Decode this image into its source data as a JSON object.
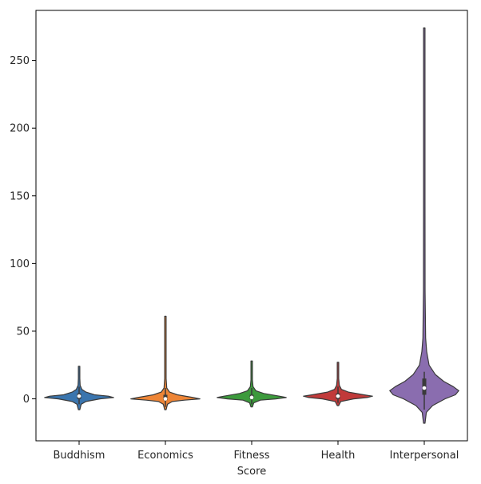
{
  "chart_data": {
    "type": "violin",
    "xlabel": "Score",
    "ylabel": "",
    "ylim": [
      -31,
      287
    ],
    "yticks": [
      0,
      50,
      100,
      150,
      200,
      250
    ],
    "ytick_labels": [
      "0",
      "50",
      "100",
      "150",
      "200",
      "250"
    ],
    "grid": false,
    "categories": [
      "Buddhism",
      "Economics",
      "Fitness",
      "Health",
      "Interpersonal"
    ],
    "series": [
      {
        "category": "Buddhism",
        "color": "#3a75ae",
        "min": -8,
        "max": 24,
        "q1": 0,
        "median": 2,
        "q3": 4,
        "whisker_low": -4,
        "whisker_high": 9,
        "density": [
          [
            -8,
            0.01
          ],
          [
            -4,
            0.06
          ],
          [
            -2,
            0.2
          ],
          [
            0,
            0.6
          ],
          [
            1,
            1.0
          ],
          [
            2,
            0.85
          ],
          [
            3,
            0.45
          ],
          [
            5,
            0.2
          ],
          [
            7,
            0.08
          ],
          [
            10,
            0.03
          ],
          [
            15,
            0.015
          ],
          [
            20,
            0.008
          ],
          [
            24,
            0.003
          ]
        ]
      },
      {
        "category": "Economics",
        "color": "#ee8536",
        "min": -8,
        "max": 61,
        "q1": -1,
        "median": 0,
        "q3": 3,
        "whisker_low": -6,
        "whisker_high": 8,
        "density": [
          [
            -8,
            0.01
          ],
          [
            -4,
            0.06
          ],
          [
            -2,
            0.2
          ],
          [
            -1,
            0.55
          ],
          [
            0,
            1.0
          ],
          [
            1,
            0.8
          ],
          [
            3,
            0.35
          ],
          [
            5,
            0.12
          ],
          [
            8,
            0.04
          ],
          [
            15,
            0.015
          ],
          [
            30,
            0.01
          ],
          [
            45,
            0.008
          ],
          [
            61,
            0.004
          ]
        ]
      },
      {
        "category": "Fitness",
        "color": "#3c9a3c",
        "min": -6,
        "max": 28,
        "q1": 0,
        "median": 1,
        "q3": 3,
        "whisker_low": -4,
        "whisker_high": 8,
        "density": [
          [
            -6,
            0.01
          ],
          [
            -3,
            0.06
          ],
          [
            -1,
            0.25
          ],
          [
            0,
            0.7
          ],
          [
            1,
            1.0
          ],
          [
            2,
            0.8
          ],
          [
            4,
            0.35
          ],
          [
            6,
            0.12
          ],
          [
            9,
            0.04
          ],
          [
            14,
            0.015
          ],
          [
            20,
            0.01
          ],
          [
            24,
            0.007
          ],
          [
            28,
            0.004
          ]
        ]
      },
      {
        "category": "Health",
        "color": "#c13a3a",
        "min": -5,
        "max": 27,
        "q1": 0,
        "median": 2,
        "q3": 4,
        "whisker_low": -3,
        "whisker_high": 9,
        "density": [
          [
            -5,
            0.01
          ],
          [
            -2,
            0.08
          ],
          [
            0,
            0.45
          ],
          [
            1,
            0.85
          ],
          [
            2,
            1.0
          ],
          [
            3,
            0.75
          ],
          [
            5,
            0.3
          ],
          [
            7,
            0.1
          ],
          [
            10,
            0.04
          ],
          [
            15,
            0.015
          ],
          [
            21,
            0.01
          ],
          [
            27,
            0.004
          ]
        ]
      },
      {
        "category": "Interpersonal",
        "color": "#8a6daf",
        "min": -18,
        "max": 274,
        "q1": 3,
        "median": 8,
        "q3": 15,
        "whisker_low": -8,
        "whisker_high": 20,
        "density": [
          [
            -18,
            0.003
          ],
          [
            -10,
            0.03
          ],
          [
            -5,
            0.12
          ],
          [
            0,
            0.3
          ],
          [
            3,
            0.45
          ],
          [
            6,
            0.5
          ],
          [
            9,
            0.42
          ],
          [
            13,
            0.28
          ],
          [
            18,
            0.16
          ],
          [
            25,
            0.07
          ],
          [
            35,
            0.035
          ],
          [
            45,
            0.02
          ],
          [
            80,
            0.012
          ],
          [
            150,
            0.008
          ],
          [
            220,
            0.006
          ],
          [
            274,
            0.004
          ]
        ]
      }
    ]
  }
}
